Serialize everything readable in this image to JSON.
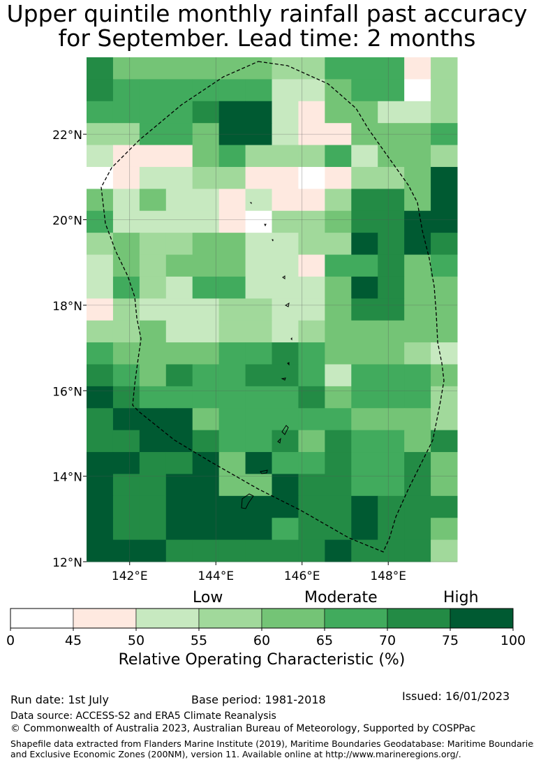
{
  "title_line1": "Upper quintile monthly rainfall past accuracy",
  "title_line2": "for September. Lead time: 2 months",
  "map": {
    "lon_range": [
      141.0,
      149.6
    ],
    "lat_range": [
      12.0,
      23.8
    ],
    "lat_ticks": [
      {
        "value": 22,
        "label": "22°N"
      },
      {
        "value": 20,
        "label": "20°N"
      },
      {
        "value": 18,
        "label": "18°N"
      },
      {
        "value": 16,
        "label": "16°N"
      },
      {
        "value": 14,
        "label": "14°N"
      },
      {
        "value": 12,
        "label": "12°N"
      }
    ],
    "lon_ticks": [
      {
        "value": 142,
        "label": "142°E"
      },
      {
        "value": 144,
        "label": "144°E"
      },
      {
        "value": 146,
        "label": "146°E"
      },
      {
        "value": 148,
        "label": "148°E"
      }
    ],
    "grid_classes_top_to_bottom": [
      [
        6,
        4,
        4,
        4,
        4,
        4,
        4,
        3,
        3,
        5,
        5,
        5,
        1,
        3
      ],
      [
        6,
        5,
        5,
        5,
        5,
        5,
        5,
        2,
        2,
        4,
        5,
        5,
        0,
        3
      ],
      [
        5,
        5,
        5,
        5,
        6,
        7,
        7,
        2,
        1,
        4,
        4,
        2,
        2,
        3
      ],
      [
        3,
        3,
        5,
        5,
        4,
        7,
        7,
        2,
        1,
        1,
        4,
        4,
        4,
        5
      ],
      [
        2,
        1,
        1,
        1,
        4,
        5,
        3,
        3,
        3,
        5,
        2,
        4,
        4,
        3
      ],
      [
        0,
        1,
        2,
        2,
        3,
        3,
        1,
        1,
        0,
        1,
        3,
        3,
        4,
        7
      ],
      [
        4,
        2,
        4,
        2,
        2,
        1,
        2,
        1,
        1,
        3,
        6,
        6,
        4,
        7
      ],
      [
        5,
        2,
        2,
        2,
        2,
        1,
        0,
        3,
        3,
        4,
        6,
        6,
        7,
        7
      ],
      [
        3,
        4,
        3,
        3,
        4,
        4,
        2,
        2,
        3,
        3,
        7,
        6,
        7,
        6
      ],
      [
        2,
        4,
        3,
        4,
        4,
        4,
        2,
        2,
        1,
        5,
        5,
        6,
        4,
        5
      ],
      [
        2,
        5,
        3,
        2,
        5,
        5,
        2,
        2,
        2,
        4,
        7,
        6,
        4,
        4
      ],
      [
        1,
        3,
        2,
        2,
        2,
        3,
        3,
        2,
        2,
        4,
        6,
        6,
        4,
        4
      ],
      [
        3,
        3,
        4,
        2,
        2,
        3,
        3,
        2,
        3,
        4,
        4,
        4,
        4,
        4
      ],
      [
        5,
        4,
        4,
        4,
        4,
        5,
        5,
        6,
        5,
        4,
        4,
        4,
        3,
        2
      ],
      [
        6,
        5,
        4,
        6,
        5,
        5,
        6,
        6,
        5,
        2,
        5,
        5,
        5,
        4
      ],
      [
        7,
        6,
        5,
        5,
        5,
        5,
        5,
        5,
        6,
        4,
        5,
        5,
        5,
        3
      ],
      [
        6,
        7,
        7,
        7,
        4,
        5,
        5,
        5,
        5,
        5,
        4,
        4,
        4,
        3
      ],
      [
        6,
        6,
        7,
        7,
        6,
        5,
        5,
        6,
        4,
        6,
        5,
        5,
        4,
        6
      ],
      [
        7,
        7,
        6,
        6,
        7,
        4,
        7,
        5,
        5,
        6,
        5,
        5,
        6,
        4
      ],
      [
        7,
        6,
        6,
        7,
        7,
        4,
        4,
        7,
        6,
        6,
        5,
        5,
        6,
        4
      ],
      [
        7,
        6,
        6,
        7,
        7,
        7,
        7,
        7,
        6,
        6,
        7,
        6,
        6,
        6
      ],
      [
        7,
        6,
        6,
        7,
        7,
        7,
        7,
        5,
        6,
        6,
        7,
        6,
        6,
        4
      ],
      [
        7,
        7,
        7,
        6,
        6,
        6,
        6,
        6,
        6,
        7,
        6,
        6,
        6,
        3
      ]
    ]
  },
  "colorbar": {
    "classes": [
      {
        "from": 0,
        "to": 45,
        "color": "#ffffff"
      },
      {
        "from": 45,
        "to": 50,
        "color": "#fee9e0"
      },
      {
        "from": 50,
        "to": 55,
        "color": "#c7e9c0"
      },
      {
        "from": 55,
        "to": 60,
        "color": "#a1d99b"
      },
      {
        "from": 60,
        "to": 65,
        "color": "#74c476"
      },
      {
        "from": 65,
        "to": 70,
        "color": "#41ab5d"
      },
      {
        "from": 70,
        "to": 75,
        "color": "#238b45"
      },
      {
        "from": 75,
        "to": 100,
        "color": "#005a32"
      }
    ],
    "tick_labels": [
      "0",
      "45",
      "50",
      "55",
      "60",
      "65",
      "70",
      "75",
      "100"
    ],
    "category_low": "Low",
    "category_moderate": "Moderate",
    "category_high": "High",
    "axis_label": "Relative Operating Characteristic (%)"
  },
  "footer": {
    "run_date": "Run date: 1st July",
    "base_period": "Base period: 1981-2018",
    "issued": "Issued: 16/01/2023",
    "data_source": "Data source: ACCESS-S2 and ERA5 Climate Reanalysis",
    "copyright": "© Commonwealth of Australia 2023, Australian Bureau of Meteorology, Supported by COSPPac",
    "shapefile_line1": "Shapefile data extracted from Flanders Marine Institute (2019), Maritime Boundaries Geodatabase: Maritime Boundaries",
    "shapefile_line2": "and Exclusive Economic Zones (200NM), version 11. Available online at http://www.marineregions.org/."
  }
}
